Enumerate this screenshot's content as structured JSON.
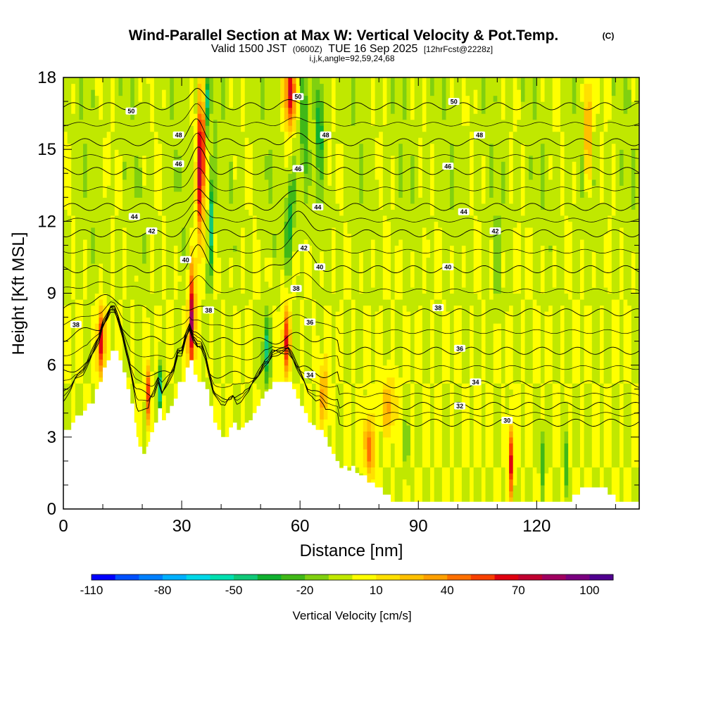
{
  "chart_data": {
    "type": "heatmap",
    "title": "Wind-Parallel Section at Max W: Vertical Velocity & Pot.Temp.",
    "title_tag": "(C)",
    "subtitle_parts": [
      "Valid 1500 JST",
      "(0600Z)",
      "TUE 16 Sep 2025",
      "[12hrFcst@2228z]"
    ],
    "meta_line": "i,j,k,angle=92,59,24,68",
    "xlabel": "Distance [nm]",
    "ylabel": "Height [Kft MSL]",
    "xlim": [
      0,
      146
    ],
    "ylim": [
      0,
      18
    ],
    "x_ticks": [
      "0",
      "30",
      "60",
      "90",
      "120"
    ],
    "x_tick_values": [
      0,
      30,
      60,
      90,
      120
    ],
    "y_ticks": [
      "0",
      "3",
      "6",
      "9",
      "12",
      "15",
      "18"
    ],
    "y_tick_values": [
      0,
      3,
      6,
      9,
      12,
      15,
      18
    ],
    "colorbar": {
      "label": "Vertical Velocity [cm/s]",
      "min": -110,
      "max": 110,
      "step": 10,
      "tick_labels": [
        "-110",
        "-80",
        "-50",
        "-20",
        "10",
        "40",
        "70",
        "100"
      ],
      "tick_values": [
        -110,
        -80,
        -50,
        -20,
        10,
        40,
        70,
        100
      ],
      "colors": [
        "#0000ff",
        "#0050ff",
        "#0080ff",
        "#00b0ff",
        "#00d8e8",
        "#00e0b0",
        "#10c878",
        "#10b030",
        "#40b818",
        "#80d010",
        "#c0e800",
        "#ffff00",
        "#ffe000",
        "#ffc000",
        "#ffa000",
        "#ff7000",
        "#f84000",
        "#e00010",
        "#c00030",
        "#a00060",
        "#7a0080",
        "#500090"
      ]
    },
    "isentropes": {
      "variable": "Potential Temperature",
      "levels": [
        30,
        32,
        34,
        36,
        38,
        40,
        42,
        44,
        46,
        48,
        50
      ],
      "labels": [
        {
          "text": "50",
          "x": 17.2,
          "y": 16.6
        },
        {
          "text": "48",
          "x": 29.2,
          "y": 15.6
        },
        {
          "text": "46",
          "x": 29.2,
          "y": 14.4
        },
        {
          "text": "44",
          "x": 18.0,
          "y": 12.2
        },
        {
          "text": "42",
          "x": 22.4,
          "y": 11.6
        },
        {
          "text": "40",
          "x": 31.0,
          "y": 10.4
        },
        {
          "text": "38",
          "x": 3.2,
          "y": 7.7
        },
        {
          "text": "38",
          "x": 36.8,
          "y": 8.3
        },
        {
          "text": "50",
          "x": 59.5,
          "y": 17.2
        },
        {
          "text": "48",
          "x": 66.5,
          "y": 15.6
        },
        {
          "text": "46",
          "x": 59.5,
          "y": 14.2
        },
        {
          "text": "44",
          "x": 64.5,
          "y": 12.6
        },
        {
          "text": "42",
          "x": 61.0,
          "y": 10.9
        },
        {
          "text": "40",
          "x": 65.0,
          "y": 10.1
        },
        {
          "text": "38",
          "x": 59.0,
          "y": 9.2
        },
        {
          "text": "36",
          "x": 62.5,
          "y": 7.8
        },
        {
          "text": "34",
          "x": 62.5,
          "y": 5.6
        },
        {
          "text": "50",
          "x": 99.0,
          "y": 17.0
        },
        {
          "text": "48",
          "x": 105.5,
          "y": 15.6
        },
        {
          "text": "46",
          "x": 97.5,
          "y": 14.3
        },
        {
          "text": "44",
          "x": 101.5,
          "y": 12.4
        },
        {
          "text": "42",
          "x": 109.5,
          "y": 11.6
        },
        {
          "text": "40",
          "x": 97.5,
          "y": 10.1
        },
        {
          "text": "38",
          "x": 95.0,
          "y": 8.4
        },
        {
          "text": "36",
          "x": 100.5,
          "y": 6.7
        },
        {
          "text": "34",
          "x": 104.5,
          "y": 5.3
        },
        {
          "text": "32",
          "x": 100.5,
          "y": 4.3
        },
        {
          "text": "30",
          "x": 112.5,
          "y": 3.7
        }
      ]
    },
    "terrain": {
      "distance": [
        0,
        2,
        3,
        5,
        6,
        8,
        9,
        10,
        11,
        12,
        13,
        14,
        15,
        16,
        17,
        18,
        18.5,
        19,
        20,
        21,
        21.5,
        22,
        23,
        24,
        25,
        26,
        27,
        28,
        29,
        30,
        31,
        32,
        33,
        34,
        35,
        36,
        37,
        38,
        39,
        40,
        41,
        42,
        43,
        44,
        45,
        46,
        47,
        48,
        49,
        50,
        51,
        52,
        53,
        55,
        57,
        58,
        59,
        60,
        61,
        62,
        63,
        64,
        65,
        66,
        67,
        68,
        69,
        70,
        71,
        72,
        73,
        74,
        75,
        77,
        79,
        81,
        83,
        85,
        87,
        89,
        90,
        95,
        100,
        110,
        115,
        120,
        125,
        127,
        129,
        131,
        135,
        138,
        140,
        141,
        143,
        146
      ],
      "height": [
        3.3,
        3.6,
        3.9,
        4.1,
        4.4,
        5.0,
        5.3,
        5.9,
        6.2,
        6.6,
        6.6,
        6.2,
        5.7,
        5.0,
        4.4,
        3.6,
        3.0,
        2.6,
        2.3,
        2.6,
        2.8,
        3.2,
        3.6,
        4.2,
        3.7,
        4.0,
        4.3,
        4.6,
        5.3,
        5.3,
        5.9,
        6.2,
        5.6,
        5.3,
        5.3,
        5.0,
        4.3,
        3.6,
        3.3,
        3.0,
        3.0,
        3.4,
        3.6,
        3.3,
        3.4,
        3.6,
        3.7,
        4.0,
        4.3,
        4.6,
        4.9,
        5.0,
        5.3,
        5.3,
        5.3,
        5.0,
        4.6,
        4.3,
        4.0,
        3.6,
        3.5,
        3.3,
        3.3,
        3.0,
        2.6,
        2.3,
        2.0,
        1.7,
        1.8,
        1.6,
        1.8,
        1.5,
        1.4,
        1.1,
        0.9,
        0.6,
        0.3,
        0.3,
        0.3,
        0.3,
        0.3,
        0.3,
        0.3,
        0.3,
        0.3,
        0.3,
        0.3,
        0.3,
        0.6,
        0.9,
        0.9,
        0.6,
        0.3,
        0.3,
        0.3,
        0.3
      ]
    },
    "updrafts": [
      {
        "x": 9.5,
        "y": 7.0,
        "w": 70,
        "sx": 0.9,
        "sy": 1.4,
        "tilt": 0.1
      },
      {
        "x": 21.5,
        "y": 4.8,
        "w": 55,
        "sx": 0.6,
        "sy": 1.2,
        "tilt": 0.0
      },
      {
        "x": 32.5,
        "y": 7.8,
        "w": 85,
        "sx": 0.8,
        "sy": 2.4,
        "tilt": 0.12
      },
      {
        "x": 35.0,
        "y": 15.0,
        "w": 95,
        "sx": 0.9,
        "sy": 3.5,
        "tilt": 0.12
      },
      {
        "x": 56.5,
        "y": 7.0,
        "w": 60,
        "sx": 0.9,
        "sy": 1.5,
        "tilt": 0.0
      },
      {
        "x": 57.5,
        "y": 17.4,
        "w": 75,
        "sx": 1.3,
        "sy": 1.4,
        "tilt": 0.0
      },
      {
        "x": 77.5,
        "y": 2.6,
        "w": 50,
        "sx": 1.2,
        "sy": 1.2,
        "tilt": -0.3
      },
      {
        "x": 82.5,
        "y": 4.3,
        "w": 30,
        "sx": 2.0,
        "sy": 1.2,
        "tilt": 0.0
      },
      {
        "x": 113.5,
        "y": 2.0,
        "w": 65,
        "sx": 0.6,
        "sy": 1.5,
        "tilt": 0.0
      },
      {
        "x": 133.0,
        "y": 16.0,
        "w": 45,
        "sx": 0.9,
        "sy": 2.2,
        "tilt": 0.0
      },
      {
        "x": 13.0,
        "y": 4.5,
        "w": 30,
        "sx": 1.6,
        "sy": 1.3,
        "tilt": 0.0
      },
      {
        "x": 66.0,
        "y": 4.8,
        "w": 35,
        "sx": 1.2,
        "sy": 1.3,
        "tilt": 0.0
      }
    ],
    "downdrafts": [
      {
        "x": 36.0,
        "y": 17.0,
        "w": -95,
        "sx": 0.6,
        "sy": 1.4,
        "tilt": 0.0
      },
      {
        "x": 37.5,
        "y": 12.0,
        "w": -45,
        "sx": 0.6,
        "sy": 3.0,
        "tilt": 0.18
      },
      {
        "x": 24.5,
        "y": 5.0,
        "w": -45,
        "sx": 0.6,
        "sy": 1.2,
        "tilt": 0.0
      },
      {
        "x": 51.5,
        "y": 6.6,
        "w": -45,
        "sx": 1.0,
        "sy": 1.4,
        "tilt": 0.0
      },
      {
        "x": 57.5,
        "y": 12.2,
        "w": -35,
        "sx": 1.1,
        "sy": 2.0,
        "tilt": 0.25
      },
      {
        "x": 61.0,
        "y": 16.0,
        "w": -40,
        "sx": 0.6,
        "sy": 2.6,
        "tilt": 0.0
      },
      {
        "x": 65.0,
        "y": 16.0,
        "w": -55,
        "sx": 0.6,
        "sy": 2.0,
        "tilt": 0.0
      },
      {
        "x": 121.5,
        "y": 2.0,
        "w": -30,
        "sx": 0.5,
        "sy": 1.4,
        "tilt": 0.0
      },
      {
        "x": 127.5,
        "y": 2.0,
        "w": -28,
        "sx": 0.5,
        "sy": 1.4,
        "tilt": 0.0
      },
      {
        "x": 87.0,
        "y": 2.8,
        "w": -25,
        "sx": 0.6,
        "sy": 1.2,
        "tilt": 0.0
      },
      {
        "x": 110.0,
        "y": 10.0,
        "w": -20,
        "sx": 0.7,
        "sy": 1.8,
        "tilt": 0.0
      }
    ],
    "background_w": 0,
    "upper_band_w": -8
  }
}
